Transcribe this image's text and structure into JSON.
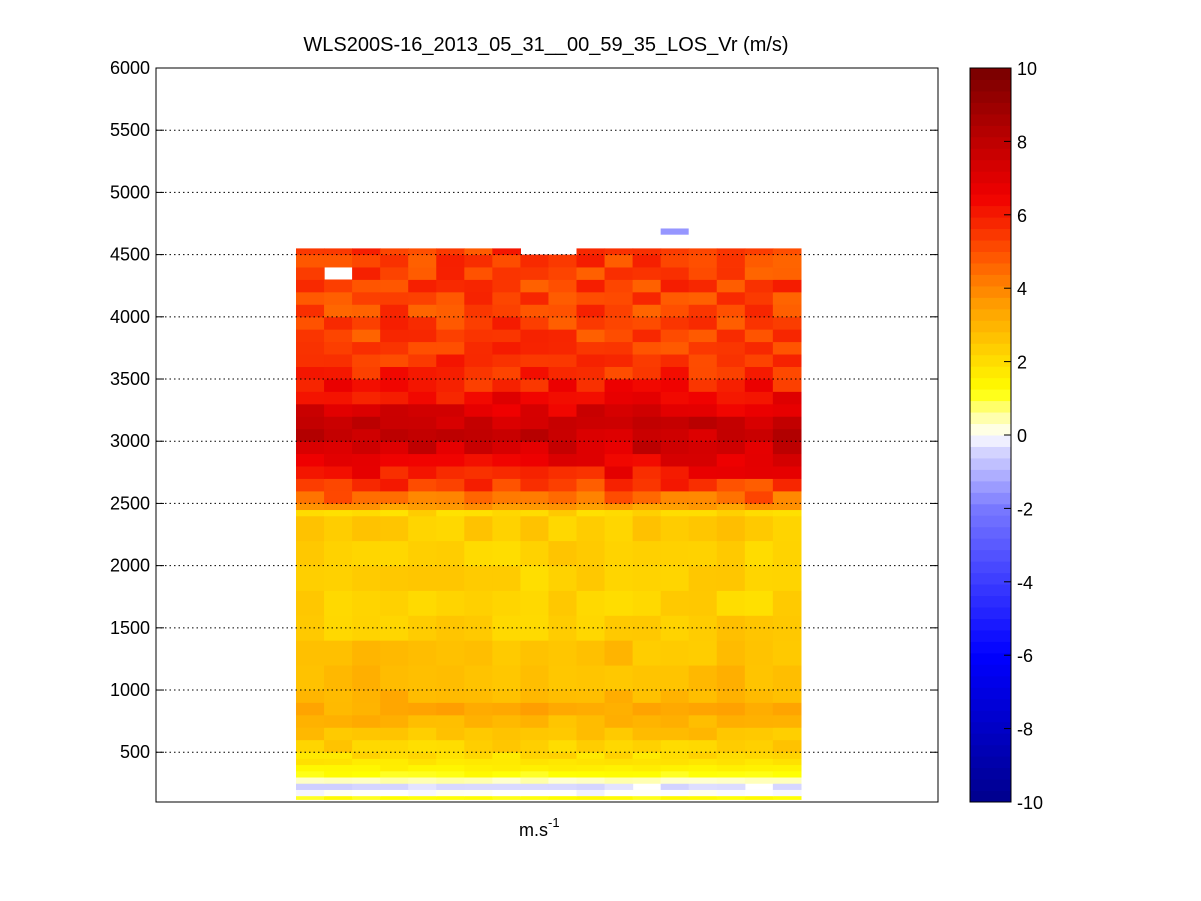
{
  "chart_data": {
    "type": "heatmap",
    "title": "WLS200S-16_2013_05_31__00_59_35_LOS_Vr (m/s)",
    "xlabel_base": "m.s",
    "xlabel_exp": "-1",
    "ylabel": "",
    "ylim": [
      100,
      6000
    ],
    "y_ticks": [
      "500",
      "1000",
      "1500",
      "2000",
      "2500",
      "3000",
      "3500",
      "4000",
      "4500",
      "5000",
      "5500",
      "6000"
    ],
    "y_tick_values": [
      500,
      1000,
      1500,
      2000,
      2500,
      3000,
      3500,
      4000,
      4500,
      5000,
      5500,
      6000
    ],
    "grid": true,
    "n_columns": 18,
    "colorbar": {
      "range": [
        -10,
        10
      ],
      "ticks": [
        "-10",
        "-8",
        "-6",
        "-4",
        "-2",
        "0",
        "2",
        "4",
        "6",
        "8",
        "10"
      ],
      "tick_values": [
        -10,
        -8,
        -6,
        -4,
        -2,
        0,
        2,
        4,
        6,
        8,
        10
      ]
    },
    "altitude_profile": {
      "altitudes_m": [
        120,
        150,
        200,
        250,
        300,
        350,
        400,
        450,
        500,
        600,
        700,
        800,
        900,
        1000,
        1200,
        1400,
        1600,
        1800,
        2000,
        2200,
        2400,
        2450,
        2500,
        2600,
        2700,
        2800,
        2900,
        3000,
        3100,
        3200,
        3300,
        3400,
        3500,
        3600,
        3700,
        3800,
        3900,
        4000,
        4100,
        4200,
        4300,
        4400,
        4500
      ],
      "velocity_ms": [
        1.2,
        0.0,
        -0.4,
        0.4,
        1.2,
        1.5,
        1.8,
        2.0,
        2.3,
        2.6,
        2.9,
        3.2,
        3.0,
        2.8,
        2.7,
        2.4,
        2.2,
        2.2,
        2.3,
        2.4,
        2.2,
        3.6,
        4.6,
        5.4,
        6.2,
        6.8,
        7.4,
        7.7,
        7.6,
        7.0,
        6.4,
        6.0,
        5.7,
        5.5,
        5.4,
        5.3,
        5.3,
        5.2,
        5.2,
        5.3,
        5.2,
        5.3,
        5.4
      ]
    },
    "missing_cells": [
      {
        "column": 1,
        "altitude_m": 4300
      },
      {
        "column": 5,
        "altitude_m": 4250
      },
      {
        "column": 8,
        "altitude_m": 4150
      },
      {
        "column": 8,
        "altitude_m": 4500
      },
      {
        "column": 9,
        "altitude_m": 4500
      },
      {
        "column": 12,
        "altitude_m": 3950
      },
      {
        "column": 15,
        "altitude_m": 4250
      },
      {
        "column": 16,
        "altitude_m": 4150
      },
      {
        "column": 12,
        "altitude_m": 180
      },
      {
        "column": 16,
        "altitude_m": 180
      }
    ],
    "isolated_cells": [
      {
        "column": 13,
        "altitude_m": 4660,
        "velocity_ms": -1.5
      }
    ]
  }
}
